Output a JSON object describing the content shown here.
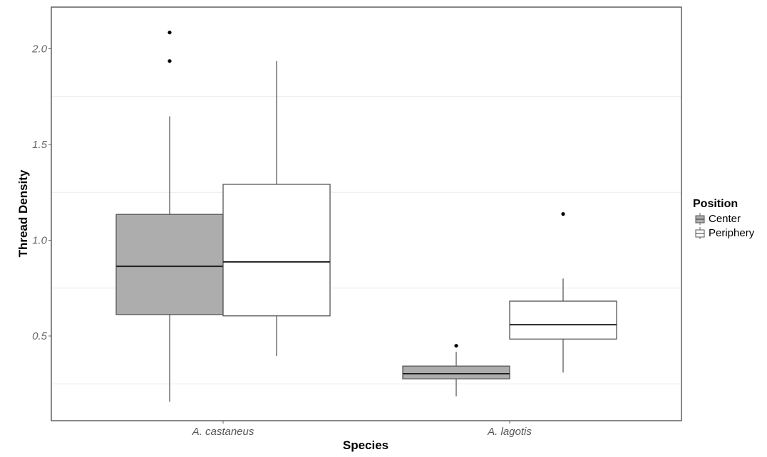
{
  "chart_data": {
    "type": "boxplot",
    "title": "",
    "xlabel": "Species",
    "ylabel": "Thread Density",
    "ylim": [
      0.05,
      2.19
    ],
    "yticks": [
      "0.5",
      "1.0",
      "1.5",
      "2.0"
    ],
    "ytick_values": [
      0.5,
      1.0,
      1.5,
      2.0
    ],
    "grid": true,
    "categories": [
      "A. castaneus",
      "A. lagotis"
    ],
    "legend": {
      "title": "Position",
      "placement": "right",
      "entries": [
        "Center",
        "Periphery"
      ]
    },
    "series": [
      {
        "name": "Center",
        "color": "#adadad",
        "boxes": [
          {
            "whisker_low": 0.156,
            "q1": 0.612,
            "median": 0.864,
            "q3": 1.135,
            "whisker_high": 1.647,
            "outliers": [
              1.936,
              2.085
            ]
          },
          {
            "whisker_low": 0.185,
            "q1": 0.276,
            "median": 0.303,
            "q3": 0.343,
            "whisker_high": 0.417,
            "outliers": [
              0.449
            ]
          }
        ]
      },
      {
        "name": "Periphery",
        "color": "#ffffff",
        "boxes": [
          {
            "whisker_low": 0.396,
            "q1": 0.605,
            "median": 0.887,
            "q3": 1.292,
            "whisker_high": 1.936,
            "outliers": []
          },
          {
            "whisker_low": 0.309,
            "q1": 0.484,
            "median": 0.559,
            "q3": 0.682,
            "whisker_high": 0.8,
            "outliers": [
              1.137
            ]
          }
        ]
      }
    ]
  }
}
